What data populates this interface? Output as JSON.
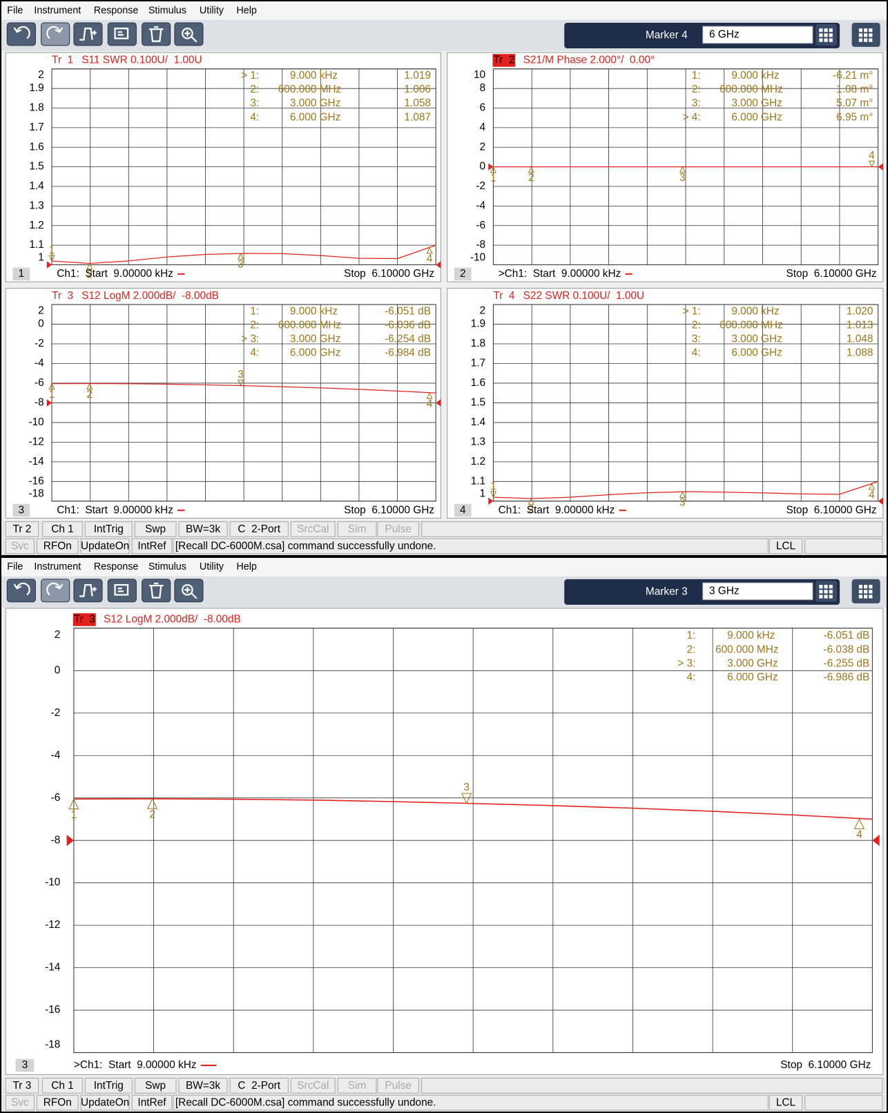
{
  "windows": [
    {
      "menu": [
        "File",
        "Instrument",
        "Response",
        "Stimulus",
        "Utility",
        "Help"
      ],
      "marker_label": "Marker 4",
      "marker_input": "6 GHz",
      "panels": [
        {
          "number": "1",
          "trace_label": "Tr  1",
          "trace_active": false,
          "title": "S11 SWR 0.100U/  1.00U",
          "ylim": [
            1,
            2
          ],
          "yticks": [
            1,
            1.1,
            1.2,
            1.3,
            1.4,
            1.5,
            1.6,
            1.7,
            1.8,
            1.9,
            2
          ],
          "xlim": [
            9e-06,
            6.1
          ],
          "ref": 1,
          "trace": {
            "x": [
              9e-06,
              0.61,
              1.22,
              1.83,
              2.44,
              3.05,
              3.66,
              4.27,
              4.88,
              5.49,
              6.1
            ],
            "y": [
              1.019,
              1.007,
              1.02,
              1.04,
              1.053,
              1.058,
              1.057,
              1.047,
              1.033,
              1.032,
              1.1
            ]
          },
          "markers": [
            {
              "id": "1",
              "label": "> 1:",
              "freq": "9.000",
              "unit": "kHz",
              "readout": "1.019",
              "x": 9e-06,
              "y": 1.019,
              "active": true
            },
            {
              "id": "2",
              "label": "2:",
              "freq": "600.000",
              "unit": "MHz",
              "readout": "1.006",
              "x": 0.6,
              "y": 1.006,
              "active": false
            },
            {
              "id": "3",
              "label": "3:",
              "freq": "3.000",
              "unit": "GHz",
              "readout": "1.058",
              "x": 3,
              "y": 1.058,
              "active": false
            },
            {
              "id": "4",
              "label": "4:",
              "freq": "6.000",
              "unit": "GHz",
              "readout": "1.087",
              "x": 6,
              "y": 1.087,
              "active": false
            }
          ],
          "start": "Ch1:  Start  9.00000 kHz",
          "stop": "Stop  6.10000 GHz"
        },
        {
          "number": "2",
          "trace_label": "Tr  2",
          "trace_active": true,
          "title": "S21/M Phase 2.000°/  0.00°",
          "ylim": [
            -10,
            10
          ],
          "yticks": [
            -10,
            -8,
            -6,
            -4,
            -2,
            0,
            2,
            4,
            6,
            8,
            10
          ],
          "xlim": [
            9e-06,
            6.1
          ],
          "ref": 0,
          "trace": {
            "x": [
              9e-06,
              0.61,
              1.22,
              1.83,
              2.44,
              3.05,
              3.66,
              4.27,
              4.88,
              5.49,
              6.1
            ],
            "y": [
              0,
              0,
              0,
              0,
              0,
              0,
              0,
              0,
              0,
              0,
              0
            ]
          },
          "markers": [
            {
              "id": "1",
              "label": "1:",
              "freq": "9.000",
              "unit": "kHz",
              "readout": "-6.21 m°",
              "x": 9e-06,
              "y": -0.00621,
              "active": false
            },
            {
              "id": "2",
              "label": "2:",
              "freq": "600.000",
              "unit": "MHz",
              "readout": "1.08 m°",
              "x": 0.6,
              "y": 0.00108,
              "active": false
            },
            {
              "id": "3",
              "label": "3:",
              "freq": "3.000",
              "unit": "GHz",
              "readout": "5.07 m°",
              "x": 3,
              "y": 0.00507,
              "active": false
            },
            {
              "id": "4",
              "label": "> 4:",
              "freq": "6.000",
              "unit": "GHz",
              "readout": "6.95 m°",
              "x": 6,
              "y": 0.00695,
              "active": true
            }
          ],
          "start": ">Ch1:  Start  9.00000 kHz",
          "stop": "Stop  6.10000 GHz"
        },
        {
          "number": "3",
          "trace_label": "Tr  3",
          "trace_active": false,
          "title": "S12 LogM 2.000dB/  -8.00dB",
          "ylim": [
            -18,
            2
          ],
          "yticks": [
            -18,
            -16,
            -14,
            -12,
            -10,
            -8,
            -6,
            -4,
            -2,
            0,
            2
          ],
          "xlim": [
            9e-06,
            6.1
          ],
          "ref": -8,
          "trace": {
            "x": [
              9e-06,
              0.61,
              1.22,
              1.83,
              2.44,
              3.05,
              3.66,
              4.27,
              4.88,
              5.49,
              6.1
            ],
            "y": [
              -6.051,
              -6.037,
              -6.06,
              -6.1,
              -6.17,
              -6.26,
              -6.36,
              -6.48,
              -6.63,
              -6.8,
              -7.0
            ]
          },
          "markers": [
            {
              "id": "1",
              "label": "1:",
              "freq": "9.000",
              "unit": "kHz",
              "readout": "-6.051 dB",
              "x": 9e-06,
              "y": -6.051,
              "active": false
            },
            {
              "id": "2",
              "label": "2:",
              "freq": "600.000",
              "unit": "MHz",
              "readout": "-6.036 dB",
              "x": 0.6,
              "y": -6.036,
              "active": false
            },
            {
              "id": "3",
              "label": "> 3:",
              "freq": "3.000",
              "unit": "GHz",
              "readout": "-6.254 dB",
              "x": 3,
              "y": -6.254,
              "active": true
            },
            {
              "id": "4",
              "label": "4:",
              "freq": "6.000",
              "unit": "GHz",
              "readout": "-6.984 dB",
              "x": 6,
              "y": -6.984,
              "active": false
            }
          ],
          "start": "Ch1:  Start  9.00000 kHz",
          "stop": "Stop  6.10000 GHz"
        },
        {
          "number": "4",
          "trace_label": "Tr  4",
          "trace_active": false,
          "title": "S22 SWR 0.100U/  1.00U",
          "ylim": [
            1,
            2
          ],
          "yticks": [
            1,
            1.1,
            1.2,
            1.3,
            1.4,
            1.5,
            1.6,
            1.7,
            1.8,
            1.9,
            2
          ],
          "xlim": [
            9e-06,
            6.1
          ],
          "ref": 1,
          "trace": {
            "x": [
              9e-06,
              0.61,
              1.22,
              1.83,
              2.44,
              3.05,
              3.66,
              4.27,
              4.88,
              5.49,
              6.1
            ],
            "y": [
              1.02,
              1.013,
              1.02,
              1.033,
              1.043,
              1.048,
              1.046,
              1.042,
              1.037,
              1.035,
              1.1
            ]
          },
          "markers": [
            {
              "id": "1",
              "label": "> 1:",
              "freq": "9.000",
              "unit": "kHz",
              "readout": "1.020",
              "x": 9e-06,
              "y": 1.02,
              "active": true
            },
            {
              "id": "2",
              "label": "2:",
              "freq": "600.000",
              "unit": "MHz",
              "readout": "1.013",
              "x": 0.6,
              "y": 1.013,
              "active": false
            },
            {
              "id": "3",
              "label": "3:",
              "freq": "3.000",
              "unit": "GHz",
              "readout": "1.048",
              "x": 3,
              "y": 1.048,
              "active": false
            },
            {
              "id": "4",
              "label": "4:",
              "freq": "6.000",
              "unit": "GHz",
              "readout": "1.088",
              "x": 6,
              "y": 1.088,
              "active": false
            }
          ],
          "start": "Ch1:  Start  9.00000 kHz",
          "stop": "Stop  6.10000 GHz"
        }
      ],
      "status": {
        "row1": [
          {
            "text": "Tr 2",
            "enabled": true
          },
          {
            "text": "Ch 1",
            "enabled": true
          },
          {
            "text": "IntTrig",
            "enabled": true
          },
          {
            "text": "Swp",
            "enabled": true
          },
          {
            "text": "BW=3k",
            "enabled": true
          },
          {
            "text": "C  2-Port",
            "enabled": true
          },
          {
            "text": "SrcCal",
            "enabled": false
          },
          {
            "text": "Sim",
            "enabled": false
          },
          {
            "text": "Pulse",
            "enabled": false
          }
        ],
        "row2": [
          {
            "text": "Svc",
            "enabled": false
          },
          {
            "text": "RFOn",
            "enabled": true
          },
          {
            "text": "UpdateOn",
            "enabled": true
          },
          {
            "text": "IntRef",
            "enabled": true
          },
          {
            "text": "[Recall DC-6000M.csa] command successfully undone.",
            "enabled": true
          },
          {
            "text": "LCL",
            "enabled": true
          }
        ]
      }
    },
    {
      "menu": [
        "File",
        "Instrument",
        "Response",
        "Stimulus",
        "Utility",
        "Help"
      ],
      "marker_label": "Marker 3",
      "marker_input": "3 GHz",
      "panels": [
        {
          "number": "3",
          "trace_label": "Tr  3",
          "trace_active": true,
          "title": "S12 LogM 2.000dB/  -8.00dB",
          "ylim": [
            -18,
            2
          ],
          "yticks": [
            -18,
            -16,
            -14,
            -12,
            -10,
            -8,
            -6,
            -4,
            -2,
            0,
            2
          ],
          "xlim": [
            9e-06,
            6.1
          ],
          "ref": -8,
          "trace": {
            "x": [
              9e-06,
              0.61,
              1.22,
              1.83,
              2.44,
              3.05,
              3.66,
              4.27,
              4.88,
              5.49,
              6.1
            ],
            "y": [
              -6.051,
              -6.039,
              -6.06,
              -6.1,
              -6.17,
              -6.26,
              -6.36,
              -6.48,
              -6.63,
              -6.8,
              -7.0
            ]
          },
          "markers": [
            {
              "id": "1",
              "label": "1:",
              "freq": "9.000",
              "unit": "kHz",
              "readout": "-6.051 dB",
              "x": 9e-06,
              "y": -6.051,
              "active": false
            },
            {
              "id": "2",
              "label": "2:",
              "freq": "600.000",
              "unit": "MHz",
              "readout": "-6.038 dB",
              "x": 0.6,
              "y": -6.038,
              "active": false
            },
            {
              "id": "3",
              "label": "> 3:",
              "freq": "3.000",
              "unit": "GHz",
              "readout": "-6.255 dB",
              "x": 3,
              "y": -6.255,
              "active": true
            },
            {
              "id": "4",
              "label": "4:",
              "freq": "6.000",
              "unit": "GHz",
              "readout": "-6.986 dB",
              "x": 6,
              "y": -6.986,
              "active": false
            }
          ],
          "start": ">Ch1:  Start  9.00000 kHz",
          "stop": "Stop  6.10000 GHz"
        }
      ],
      "status": {
        "row1": [
          {
            "text": "Tr 3",
            "enabled": true
          },
          {
            "text": "Ch 1",
            "enabled": true
          },
          {
            "text": "IntTrig",
            "enabled": true
          },
          {
            "text": "Swp",
            "enabled": true
          },
          {
            "text": "BW=3k",
            "enabled": true
          },
          {
            "text": "C  2-Port",
            "enabled": true
          },
          {
            "text": "SrcCal",
            "enabled": false
          },
          {
            "text": "Sim",
            "enabled": false
          },
          {
            "text": "Pulse",
            "enabled": false
          }
        ],
        "row2": [
          {
            "text": "Svc",
            "enabled": false
          },
          {
            "text": "RFOn",
            "enabled": true
          },
          {
            "text": "UpdateOn",
            "enabled": true
          },
          {
            "text": "IntRef",
            "enabled": true
          },
          {
            "text": "[Recall DC-6000M.csa] command successfully undone.",
            "enabled": true
          },
          {
            "text": "LCL",
            "enabled": true
          }
        ]
      }
    }
  ]
}
